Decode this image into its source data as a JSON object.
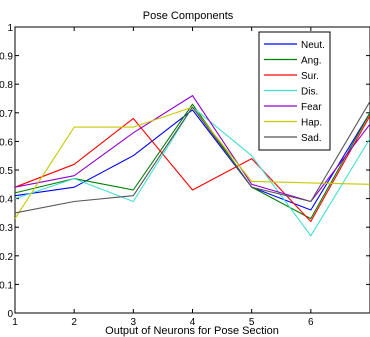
{
  "chart_data": {
    "type": "line",
    "title": "Pose Components",
    "xlabel": "Output of Neurons for Pose Section",
    "ylabel": "",
    "x": [
      1,
      2,
      3,
      4,
      5,
      6,
      7
    ],
    "xlim": [
      1,
      7
    ],
    "ylim": [
      0,
      1
    ],
    "xticks": [
      "1",
      "2",
      "3",
      "4",
      "5",
      "6"
    ],
    "yticks": [
      "0",
      "0.1",
      "0.2",
      "0.3",
      "0.4",
      "0.5",
      "0.6",
      "0.7",
      "0.8",
      "0.9",
      "1"
    ],
    "grid": false,
    "legend_position": "top-right",
    "series": [
      {
        "name": "Neut.",
        "color": "#0000ff",
        "values": [
          0.41,
          0.44,
          0.55,
          0.71,
          0.44,
          0.36,
          0.7
        ]
      },
      {
        "name": "Ang.",
        "color": "#008000",
        "values": [
          0.42,
          0.47,
          0.43,
          0.73,
          0.44,
          0.33,
          0.7
        ]
      },
      {
        "name": "Sur.",
        "color": "#ff0000",
        "values": [
          0.44,
          0.52,
          0.68,
          0.43,
          0.54,
          0.32,
          0.69
        ]
      },
      {
        "name": "Dis.",
        "color": "#40e0d0",
        "values": [
          0.4,
          0.47,
          0.39,
          0.72,
          0.55,
          0.27,
          0.61
        ]
      },
      {
        "name": "Fear",
        "color": "#9400d3",
        "values": [
          0.44,
          0.48,
          0.63,
          0.76,
          0.45,
          0.39,
          0.66
        ]
      },
      {
        "name": "Hap.",
        "color": "#c8c800",
        "values": [
          0.33,
          0.65,
          0.65,
          0.72,
          0.46,
          0.455,
          0.45
        ]
      },
      {
        "name": "Sad.",
        "color": "#555555",
        "values": [
          0.35,
          0.39,
          0.41,
          0.72,
          0.44,
          0.39,
          0.74
        ]
      }
    ]
  }
}
